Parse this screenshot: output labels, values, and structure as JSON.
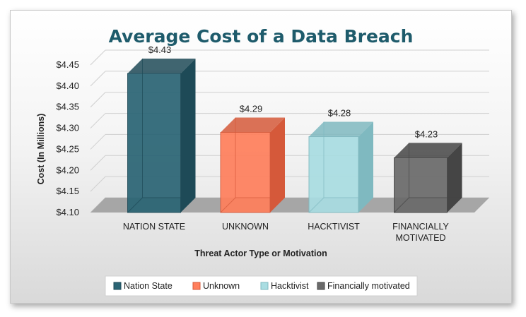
{
  "chart_data": {
    "type": "bar",
    "title": "Average Cost of a Data Breach",
    "xlabel": "Threat Actor Type or Motivation",
    "ylabel": "Cost (In Millions)",
    "categories": [
      [
        "NATION STATE"
      ],
      [
        "UNKNOWN"
      ],
      [
        "HACKTIVIST"
      ],
      [
        "FINANCIALLY",
        "MOTIVATED"
      ]
    ],
    "values": [
      4.43,
      4.29,
      4.28,
      4.23
    ],
    "data_labels": [
      "$4.43",
      "$4.29",
      "$4.28",
      "$4.23"
    ],
    "ylim": [
      4.1,
      4.45
    ],
    "yticks": [
      4.1,
      4.15,
      4.2,
      4.25,
      4.3,
      4.35,
      4.4,
      4.45
    ],
    "ytick_labels": [
      "$4.10",
      "$4.15",
      "$4.20",
      "$4.25",
      "$4.30",
      "$4.35",
      "$4.40",
      "$4.45"
    ],
    "legend": [
      "Nation State",
      "Unknown",
      "Hacktivist",
      "Financially motivated"
    ],
    "legend_position": "bottom",
    "grid": true,
    "colors": {
      "title": "#1e5b6b",
      "series": [
        "#2a6474",
        "#ff7f5c",
        "#a9dde2",
        "#6a6a6a"
      ],
      "series_dark": [
        "#1e4a57",
        "#d5593a",
        "#7fb9c0",
        "#454545"
      ],
      "floor": "#a6a6a6",
      "grid": "#cfcfcf"
    }
  }
}
